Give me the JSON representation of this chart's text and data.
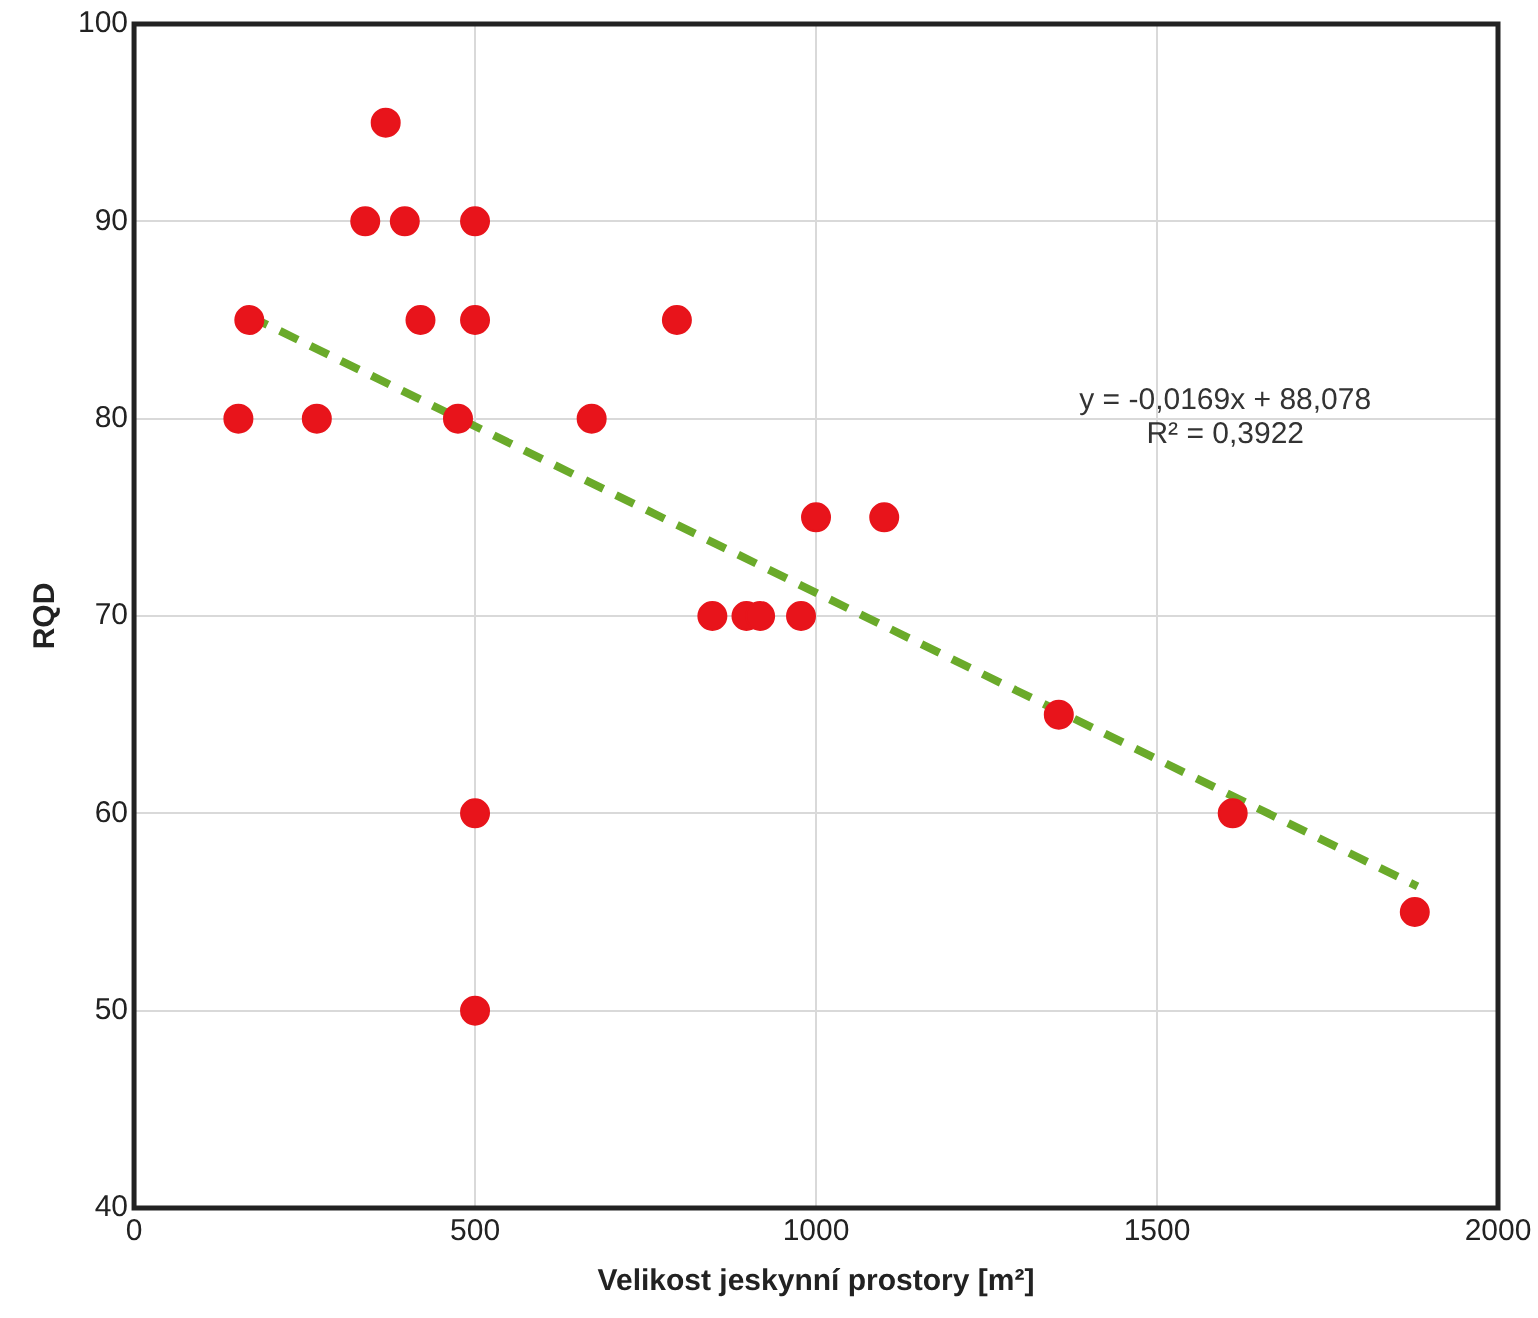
{
  "chart_data": {
    "type": "scatter",
    "xlabel": "Velikost jeskynní prostory [m²]",
    "ylabel": "RQD",
    "xlim": [
      0,
      2000
    ],
    "xticks": [
      0,
      500,
      1000,
      1500,
      2000
    ],
    "ylim": [
      40,
      100
    ],
    "yticks": [
      40,
      50,
      60,
      70,
      80,
      90,
      100
    ],
    "grid": true,
    "legend": false,
    "series": [
      {
        "marker": "circle",
        "color": "#e8141b",
        "x": [
          153,
          268,
          475,
          671,
          169,
          420,
          500,
          796,
          339,
          397,
          500,
          369,
          500,
          500,
          848,
          898,
          918,
          978,
          1000,
          1100,
          1356,
          1611,
          1878
        ],
        "values": [
          80,
          80,
          80,
          80,
          85,
          85,
          85,
          85,
          90,
          90,
          90,
          95,
          60,
          50,
          70,
          70,
          70,
          70,
          75,
          75,
          65,
          60,
          55
        ]
      },
      {
        "type": "line",
        "color": "#6aaa2a",
        "line_style": "dashed",
        "marker": "none",
        "x": [
          169,
          1882
        ],
        "values": [
          85.2,
          56.3
        ]
      }
    ],
    "annotations": [
      "y = -0,0169x + 88,078",
      "R² = 0,3922"
    ]
  }
}
